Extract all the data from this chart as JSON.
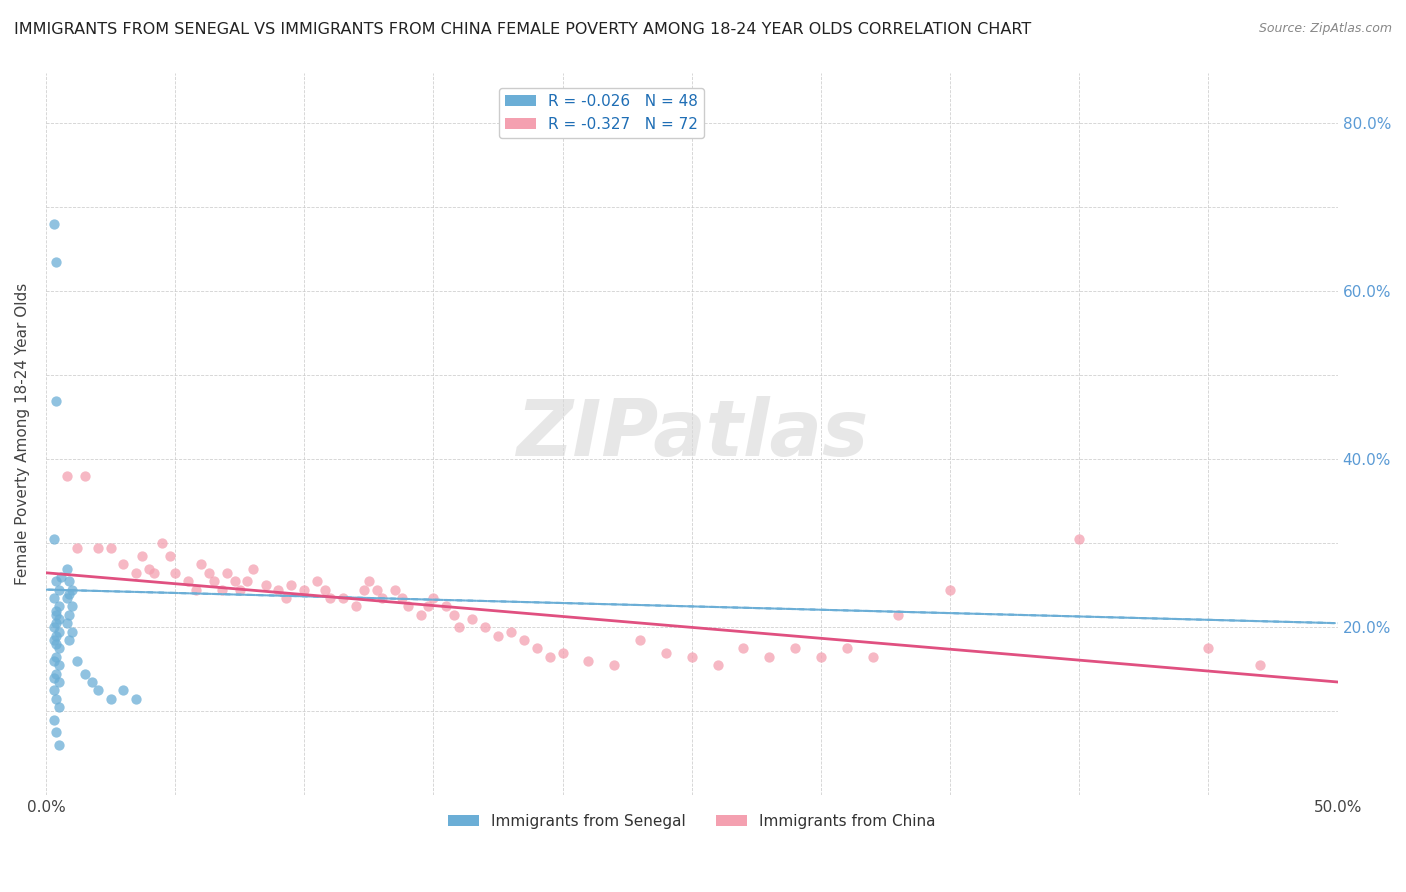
{
  "title": "IMMIGRANTS FROM SENEGAL VS IMMIGRANTS FROM CHINA FEMALE POVERTY AMONG 18-24 YEAR OLDS CORRELATION CHART",
  "source": "Source: ZipAtlas.com",
  "ylabel": "Female Poverty Among 18-24 Year Olds",
  "xlim": [
    0.0,
    0.5
  ],
  "ylim": [
    0.0,
    0.86
  ],
  "xticks": [
    0.0,
    0.05,
    0.1,
    0.15,
    0.2,
    0.25,
    0.3,
    0.35,
    0.4,
    0.45,
    0.5
  ],
  "yticks": [
    0.0,
    0.1,
    0.2,
    0.3,
    0.4,
    0.5,
    0.6,
    0.7,
    0.8
  ],
  "xticklabels": [
    "0.0%",
    "",
    "",
    "",
    "",
    "",
    "",
    "",
    "",
    "",
    "50.0%"
  ],
  "yticklabels_right": [
    "",
    "",
    "20.0%",
    "",
    "40.0%",
    "",
    "60.0%",
    "",
    "80.0%"
  ],
  "senegal_color": "#6baed6",
  "china_color": "#f4a0b0",
  "senegal_R": -0.026,
  "senegal_N": 48,
  "china_R": -0.327,
  "china_N": 72,
  "background_color": "#ffffff",
  "watermark": "ZIPatlas",
  "legend_label_senegal": "Immigrants from Senegal",
  "legend_label_china": "Immigrants from China",
  "senegal_scatter": [
    [
      0.003,
      0.68
    ],
    [
      0.004,
      0.635
    ],
    [
      0.004,
      0.47
    ],
    [
      0.003,
      0.305
    ],
    [
      0.004,
      0.255
    ],
    [
      0.005,
      0.245
    ],
    [
      0.006,
      0.26
    ],
    [
      0.003,
      0.235
    ],
    [
      0.005,
      0.225
    ],
    [
      0.004,
      0.22
    ],
    [
      0.004,
      0.215
    ],
    [
      0.005,
      0.21
    ],
    [
      0.004,
      0.205
    ],
    [
      0.003,
      0.2
    ],
    [
      0.005,
      0.195
    ],
    [
      0.004,
      0.19
    ],
    [
      0.003,
      0.185
    ],
    [
      0.004,
      0.18
    ],
    [
      0.005,
      0.175
    ],
    [
      0.004,
      0.165
    ],
    [
      0.003,
      0.16
    ],
    [
      0.005,
      0.155
    ],
    [
      0.004,
      0.145
    ],
    [
      0.003,
      0.14
    ],
    [
      0.005,
      0.135
    ],
    [
      0.003,
      0.125
    ],
    [
      0.004,
      0.115
    ],
    [
      0.005,
      0.105
    ],
    [
      0.003,
      0.09
    ],
    [
      0.004,
      0.075
    ],
    [
      0.005,
      0.06
    ],
    [
      0.008,
      0.27
    ],
    [
      0.009,
      0.255
    ],
    [
      0.01,
      0.245
    ],
    [
      0.009,
      0.24
    ],
    [
      0.008,
      0.235
    ],
    [
      0.01,
      0.225
    ],
    [
      0.009,
      0.215
    ],
    [
      0.008,
      0.205
    ],
    [
      0.01,
      0.195
    ],
    [
      0.009,
      0.185
    ],
    [
      0.012,
      0.16
    ],
    [
      0.015,
      0.145
    ],
    [
      0.018,
      0.135
    ],
    [
      0.02,
      0.125
    ],
    [
      0.025,
      0.115
    ],
    [
      0.03,
      0.125
    ],
    [
      0.035,
      0.115
    ]
  ],
  "china_scatter": [
    [
      0.008,
      0.38
    ],
    [
      0.012,
      0.295
    ],
    [
      0.015,
      0.38
    ],
    [
      0.02,
      0.295
    ],
    [
      0.025,
      0.295
    ],
    [
      0.03,
      0.275
    ],
    [
      0.035,
      0.265
    ],
    [
      0.037,
      0.285
    ],
    [
      0.04,
      0.27
    ],
    [
      0.042,
      0.265
    ],
    [
      0.045,
      0.3
    ],
    [
      0.048,
      0.285
    ],
    [
      0.05,
      0.265
    ],
    [
      0.055,
      0.255
    ],
    [
      0.058,
      0.245
    ],
    [
      0.06,
      0.275
    ],
    [
      0.063,
      0.265
    ],
    [
      0.065,
      0.255
    ],
    [
      0.068,
      0.245
    ],
    [
      0.07,
      0.265
    ],
    [
      0.073,
      0.255
    ],
    [
      0.075,
      0.245
    ],
    [
      0.078,
      0.255
    ],
    [
      0.08,
      0.27
    ],
    [
      0.085,
      0.25
    ],
    [
      0.09,
      0.245
    ],
    [
      0.093,
      0.235
    ],
    [
      0.095,
      0.25
    ],
    [
      0.1,
      0.245
    ],
    [
      0.105,
      0.255
    ],
    [
      0.108,
      0.245
    ],
    [
      0.11,
      0.235
    ],
    [
      0.115,
      0.235
    ],
    [
      0.12,
      0.225
    ],
    [
      0.123,
      0.245
    ],
    [
      0.125,
      0.255
    ],
    [
      0.128,
      0.245
    ],
    [
      0.13,
      0.235
    ],
    [
      0.135,
      0.245
    ],
    [
      0.138,
      0.235
    ],
    [
      0.14,
      0.225
    ],
    [
      0.145,
      0.215
    ],
    [
      0.148,
      0.225
    ],
    [
      0.15,
      0.235
    ],
    [
      0.155,
      0.225
    ],
    [
      0.158,
      0.215
    ],
    [
      0.16,
      0.2
    ],
    [
      0.165,
      0.21
    ],
    [
      0.17,
      0.2
    ],
    [
      0.175,
      0.19
    ],
    [
      0.18,
      0.195
    ],
    [
      0.185,
      0.185
    ],
    [
      0.19,
      0.175
    ],
    [
      0.195,
      0.165
    ],
    [
      0.2,
      0.17
    ],
    [
      0.21,
      0.16
    ],
    [
      0.22,
      0.155
    ],
    [
      0.23,
      0.185
    ],
    [
      0.24,
      0.17
    ],
    [
      0.25,
      0.165
    ],
    [
      0.26,
      0.155
    ],
    [
      0.27,
      0.175
    ],
    [
      0.28,
      0.165
    ],
    [
      0.29,
      0.175
    ],
    [
      0.3,
      0.165
    ],
    [
      0.31,
      0.175
    ],
    [
      0.32,
      0.165
    ],
    [
      0.33,
      0.215
    ],
    [
      0.35,
      0.245
    ],
    [
      0.4,
      0.305
    ],
    [
      0.45,
      0.175
    ],
    [
      0.47,
      0.155
    ]
  ],
  "senegal_trend": [
    0.0,
    0.5,
    0.245,
    0.205
  ],
  "china_trend": [
    0.0,
    0.5,
    0.265,
    0.135
  ]
}
